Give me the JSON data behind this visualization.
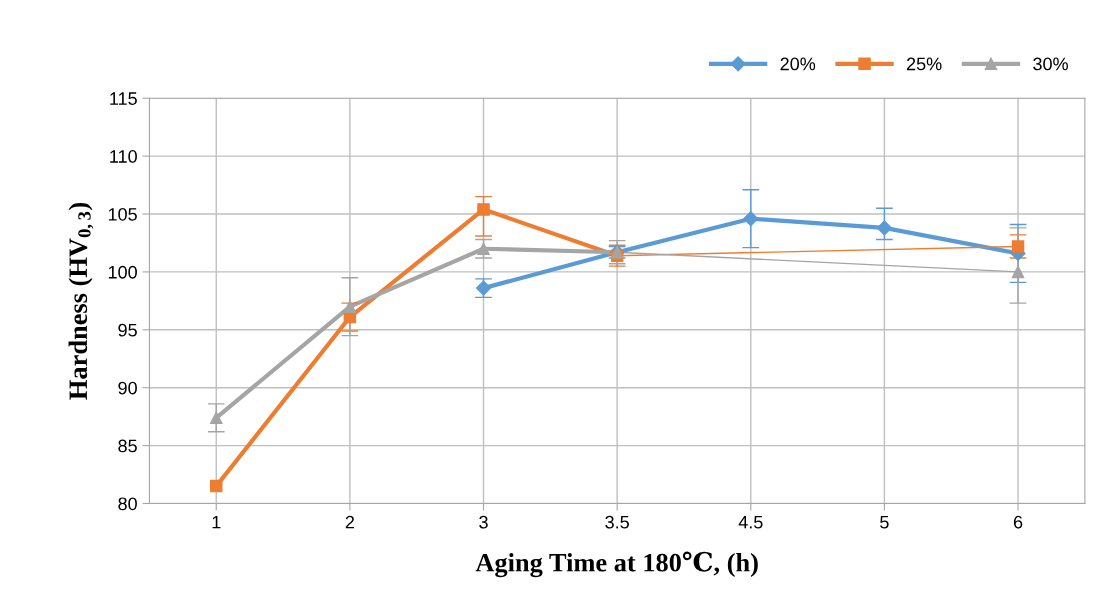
{
  "chart_data": {
    "type": "line",
    "xlabel": "Aging Time at 180℃, (h)",
    "ylabel": "Hardness (HV$_{0,3}$)",
    "categories": [
      "1",
      "2",
      "3",
      "3.5",
      "4.5",
      "5",
      "6"
    ],
    "ylim": [
      80,
      115
    ],
    "yticks": [
      80,
      85,
      90,
      95,
      100,
      105,
      110,
      115
    ],
    "grid": true,
    "legend": "top right",
    "series": [
      {
        "name": "20%",
        "color": "#5b9bd5",
        "marker": "diamond",
        "values": [
          null,
          null,
          98.6,
          101.7,
          104.6,
          103.8,
          101.6
        ],
        "errors": [
          null,
          null,
          0.8,
          0.5,
          2.5,
          [
            102.8,
            105.5
          ],
          2.5
        ]
      },
      {
        "name": "25%",
        "color": "#ed7d31",
        "marker": "square",
        "values": [
          81.5,
          96.1,
          105.4,
          101.4,
          null,
          null,
          102.2
        ],
        "errors": [
          null,
          1.2,
          [
            103.1,
            106.5
          ],
          0.9,
          null,
          null,
          1.0
        ]
      },
      {
        "name": "30%",
        "color": "#a5a5a5",
        "marker": "triangle",
        "values": [
          87.4,
          97.0,
          102.0,
          101.7,
          null,
          null,
          100.0
        ],
        "errors": [
          1.2,
          2.5,
          0.8,
          1.0,
          null,
          null,
          [
            97.3,
            103.8
          ]
        ]
      }
    ]
  }
}
